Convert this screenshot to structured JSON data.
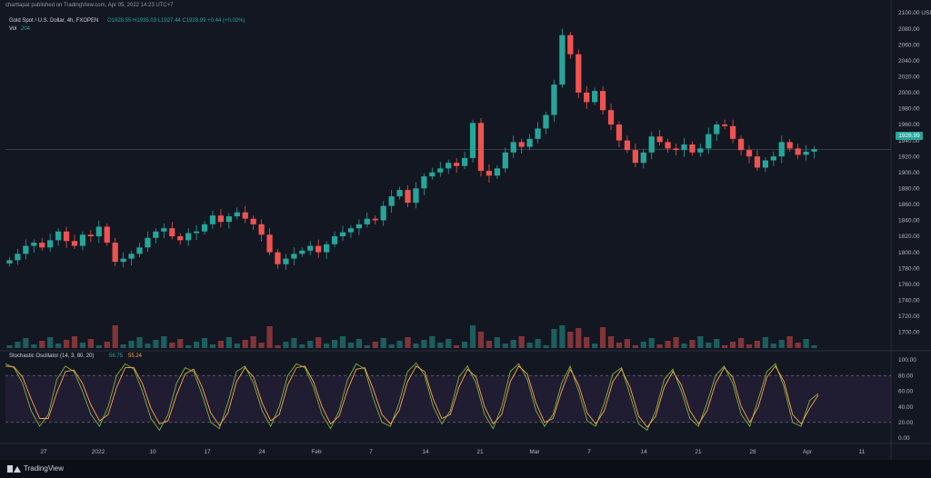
{
  "header": {
    "publisher": "charttapat published on TradingView.com, Apr 05, 2022 14:23 UTC+7",
    "symbol": "Gold Spot / U.S. Dollar, 4h, FXOPEN",
    "ohlc": "O1928.55 H1935.03 L1927.44 C1928.99 +0.44 (+0.02%)",
    "volume_label": "Vol",
    "volume_value": "204"
  },
  "oscillator": {
    "label": "Stochastic Oscillator (14, 3, 80, 20)",
    "k_value": "56.75",
    "d_value": "55.24"
  },
  "footer": {
    "brand": "TradingView"
  },
  "colors": {
    "bg": "#131722",
    "up": "#26a69a",
    "down": "#ef5350",
    "k_line": "#7cb342",
    "d_line": "#f7a64b",
    "band": "#2a1f3d"
  },
  "chart_data": [
    {
      "type": "line",
      "title": "Gold Spot / U.S. Dollar, 4h, FXOPEN",
      "y_unit_label": "USD",
      "ylim": [
        1680,
        2100
      ],
      "y_ticks": [
        "2100.00",
        "2080.00",
        "2060.00",
        "2040.00",
        "2020.00",
        "2000.00",
        "1980.00",
        "1960.00",
        "1940.00",
        "1920.00",
        "1900.00",
        "1880.00",
        "1860.00",
        "1840.00",
        "1820.00",
        "1800.00",
        "1780.00",
        "1760.00",
        "1740.00",
        "1720.00",
        "1700.00"
      ],
      "x_ticks": [
        "27",
        "2022",
        "10",
        "17",
        "24",
        "Feb",
        "7",
        "14",
        "21",
        "Mar",
        "7",
        "14",
        "21",
        "28",
        "Apr",
        "11"
      ],
      "last_price": "1928.99",
      "close_path": [
        1790,
        1798,
        1808,
        1812,
        1806,
        1815,
        1826,
        1814,
        1808,
        1822,
        1820,
        1832,
        1812,
        1788,
        1792,
        1798,
        1806,
        1818,
        1826,
        1830,
        1820,
        1815,
        1824,
        1826,
        1835,
        1846,
        1838,
        1845,
        1850,
        1842,
        1835,
        1822,
        1800,
        1785,
        1792,
        1798,
        1802,
        1808,
        1800,
        1810,
        1820,
        1825,
        1830,
        1835,
        1842,
        1840,
        1858,
        1870,
        1878,
        1862,
        1880,
        1895,
        1900,
        1905,
        1912,
        1908,
        1918,
        1962,
        1902,
        1896,
        1905,
        1925,
        1938,
        1932,
        1942,
        1955,
        1972,
        2010,
        2072,
        2048,
        2000,
        1988,
        2002,
        1978,
        1960,
        1940,
        1928,
        1912,
        1925,
        1945,
        1938,
        1930,
        1928,
        1935,
        1925,
        1930,
        1948,
        1960,
        1958,
        1942,
        1928,
        1920,
        1906,
        1915,
        1920,
        1938,
        1930,
        1922,
        1926,
        1929
      ]
    },
    {
      "type": "line",
      "title": "Stochastic Oscillator (14, 3, 80, 20)",
      "ylim": [
        0,
        100
      ],
      "y_ticks": [
        "100.00",
        "80.00",
        "60.00",
        "40.00",
        "20.00",
        "0.00"
      ],
      "bands": [
        20,
        80
      ],
      "series": [
        {
          "name": "%K",
          "values": [
            95,
            90,
            70,
            35,
            15,
            30,
            75,
            92,
            85,
            60,
            30,
            15,
            40,
            80,
            95,
            88,
            60,
            25,
            10,
            30,
            70,
            90,
            85,
            55,
            20,
            12,
            45,
            85,
            92,
            70,
            35,
            15,
            40,
            80,
            95,
            90,
            65,
            30,
            12,
            35,
            75,
            95,
            88,
            50,
            20,
            15,
            45,
            85,
            96,
            80,
            40,
            18,
            35,
            78,
            92,
            70,
            30,
            12,
            40,
            85,
            95,
            75,
            35,
            15,
            30,
            70,
            92,
            60,
            22,
            15,
            45,
            82,
            90,
            55,
            18,
            10,
            35,
            75,
            88,
            60,
            25,
            15,
            45,
            80,
            92,
            70,
            30,
            15,
            50,
            85,
            95,
            65,
            20,
            15,
            48,
            57
          ]
        },
        {
          "name": "%D",
          "values": [
            92,
            91,
            78,
            50,
            25,
            25,
            58,
            85,
            87,
            70,
            42,
            22,
            30,
            65,
            90,
            90,
            70,
            38,
            18,
            22,
            55,
            82,
            88,
            65,
            32,
            16,
            32,
            72,
            90,
            78,
            45,
            22,
            30,
            68,
            90,
            92,
            72,
            40,
            18,
            28,
            62,
            88,
            90,
            62,
            30,
            18,
            35,
            72,
            92,
            85,
            50,
            25,
            30,
            65,
            88,
            78,
            40,
            18,
            30,
            72,
            92,
            82,
            45,
            20,
            25,
            60,
            88,
            68,
            32,
            18,
            35,
            72,
            88,
            65,
            28,
            14,
            28,
            65,
            85,
            68,
            35,
            18,
            35,
            70,
            90,
            78,
            40,
            20,
            40,
            78,
            92,
            72,
            30,
            18,
            38,
            55
          ]
        }
      ]
    }
  ]
}
